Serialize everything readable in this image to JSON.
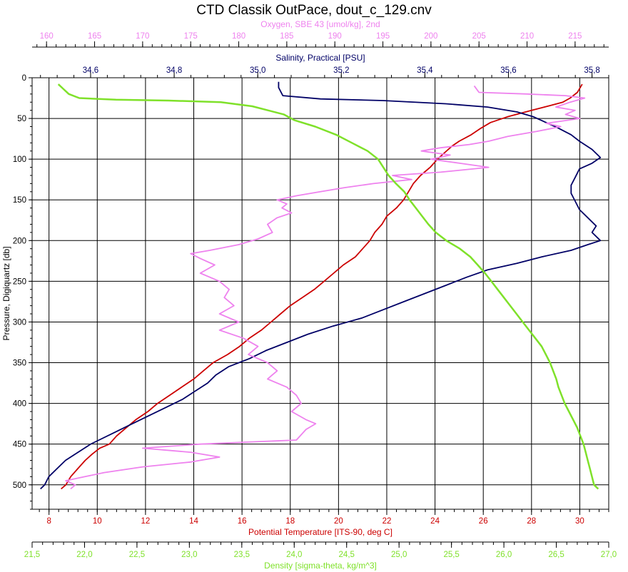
{
  "chart_data": {
    "type": "line",
    "title": "CTD Classik OutPace, dout_c_129.cnv",
    "grid": true,
    "y_axis": {
      "label": "Pressure, Digiquartz [db]",
      "range": [
        530,
        0
      ],
      "inverted": true,
      "ticks": [
        0,
        50,
        100,
        150,
        200,
        250,
        300,
        350,
        400,
        450,
        500
      ],
      "tick_labels": [
        "0",
        "50",
        "100",
        "150",
        "200",
        "250",
        "300",
        "350",
        "400",
        "450",
        "500"
      ],
      "color": "#000000"
    },
    "x_axes": [
      {
        "id": "oxygen",
        "label": "Oxygen, SBE 43 [umol/kg], 2nd",
        "position": "top-outer",
        "range": [
          158.5,
          218.5
        ],
        "ticks": [
          160,
          165,
          170,
          175,
          180,
          185,
          190,
          195,
          200,
          205,
          210,
          215
        ],
        "tick_labels": [
          "160",
          "165",
          "170",
          "175",
          "180",
          "185",
          "190",
          "195",
          "200",
          "205",
          "210",
          "215"
        ],
        "color": "#ee82ee"
      },
      {
        "id": "salinity",
        "label": "Salinity, Practical [PSU]",
        "position": "top-inner",
        "range": [
          34.46,
          35.84
        ],
        "ticks": [
          34.6,
          34.8,
          35.0,
          35.2,
          35.4,
          35.6,
          35.8
        ],
        "tick_labels": [
          "34,6",
          "34,8",
          "35,0",
          "35,2",
          "35,4",
          "35,6",
          "35,8"
        ],
        "color": "#000066"
      },
      {
        "id": "temperature",
        "label": "Potential Temperature [ITS-90, deg C]",
        "position": "bottom-inner",
        "range": [
          7.3,
          31.2
        ],
        "ticks": [
          8,
          10,
          12,
          14,
          16,
          18,
          20,
          22,
          24,
          26,
          28,
          30
        ],
        "tick_labels": [
          "8",
          "10",
          "12",
          "14",
          "16",
          "18",
          "20",
          "22",
          "24",
          "26",
          "28",
          "30"
        ],
        "color": "#cc0000"
      },
      {
        "id": "density",
        "label": "Density [sigma-theta, kg/m^3]",
        "position": "bottom-outer",
        "range": [
          21.5,
          27.0
        ],
        "ticks": [
          21.5,
          22.0,
          22.5,
          23.0,
          23.5,
          24.0,
          24.5,
          25.0,
          25.5,
          26.0,
          26.5,
          27.0
        ],
        "tick_labels": [
          "21,5",
          "22,0",
          "22,5",
          "23,0",
          "23,5",
          "24,0",
          "24,5",
          "25,0",
          "25,5",
          "26,0",
          "26,5",
          "27,0"
        ],
        "color": "#7fe12a"
      }
    ],
    "series": [
      {
        "id": "temperature",
        "axis": "temperature",
        "color": "#cc0000",
        "points": [
          [
            30.1,
            8
          ],
          [
            29.9,
            18
          ],
          [
            29.6,
            25
          ],
          [
            29.3,
            30
          ],
          [
            28.8,
            34
          ],
          [
            28.0,
            40
          ],
          [
            27.0,
            48
          ],
          [
            26.3,
            55
          ],
          [
            25.9,
            62
          ],
          [
            25.5,
            70
          ],
          [
            25.0,
            78
          ],
          [
            24.7,
            84
          ],
          [
            24.4,
            92
          ],
          [
            24.1,
            100
          ],
          [
            23.8,
            110
          ],
          [
            23.4,
            120
          ],
          [
            23.1,
            130
          ],
          [
            22.9,
            140
          ],
          [
            22.7,
            150
          ],
          [
            22.4,
            160
          ],
          [
            22.0,
            170
          ],
          [
            21.8,
            180
          ],
          [
            21.5,
            190
          ],
          [
            21.3,
            200
          ],
          [
            21.0,
            210
          ],
          [
            20.7,
            220
          ],
          [
            20.2,
            230
          ],
          [
            19.8,
            240
          ],
          [
            19.4,
            250
          ],
          [
            19.0,
            260
          ],
          [
            18.5,
            270
          ],
          [
            18.0,
            280
          ],
          [
            17.6,
            290
          ],
          [
            17.2,
            300
          ],
          [
            16.8,
            310
          ],
          [
            16.3,
            320
          ],
          [
            15.9,
            330
          ],
          [
            15.4,
            340
          ],
          [
            14.8,
            350
          ],
          [
            14.4,
            360
          ],
          [
            14.0,
            370
          ],
          [
            13.5,
            380
          ],
          [
            13.0,
            390
          ],
          [
            12.5,
            400
          ],
          [
            12.1,
            410
          ],
          [
            11.6,
            420
          ],
          [
            11.2,
            430
          ],
          [
            10.8,
            440
          ],
          [
            10.5,
            450
          ],
          [
            10.1,
            455
          ],
          [
            9.8,
            462
          ],
          [
            9.5,
            470
          ],
          [
            9.2,
            480
          ],
          [
            8.9,
            490
          ],
          [
            8.7,
            500
          ],
          [
            8.5,
            505
          ]
        ]
      },
      {
        "id": "salinity",
        "axis": "salinity",
        "color": "#000066",
        "points": [
          [
            35.05,
            5
          ],
          [
            35.05,
            12
          ],
          [
            35.06,
            22
          ],
          [
            35.15,
            26
          ],
          [
            35.3,
            28
          ],
          [
            35.45,
            32
          ],
          [
            35.55,
            36
          ],
          [
            35.62,
            42
          ],
          [
            35.66,
            48
          ],
          [
            35.69,
            55
          ],
          [
            35.72,
            62
          ],
          [
            35.75,
            70
          ],
          [
            35.77,
            78
          ],
          [
            35.8,
            88
          ],
          [
            35.82,
            98
          ],
          [
            35.8,
            105
          ],
          [
            35.77,
            112
          ],
          [
            35.76,
            122
          ],
          [
            35.75,
            132
          ],
          [
            35.75,
            142
          ],
          [
            35.76,
            152
          ],
          [
            35.77,
            162
          ],
          [
            35.79,
            172
          ],
          [
            35.81,
            182
          ],
          [
            35.8,
            190
          ],
          [
            35.82,
            200
          ],
          [
            35.79,
            205
          ],
          [
            35.75,
            212
          ],
          [
            35.68,
            220
          ],
          [
            35.62,
            228
          ],
          [
            35.55,
            236
          ],
          [
            35.5,
            245
          ],
          [
            35.45,
            255
          ],
          [
            35.4,
            265
          ],
          [
            35.35,
            275
          ],
          [
            35.3,
            285
          ],
          [
            35.25,
            295
          ],
          [
            35.18,
            305
          ],
          [
            35.12,
            315
          ],
          [
            35.07,
            325
          ],
          [
            35.02,
            335
          ],
          [
            34.98,
            345
          ],
          [
            34.93,
            355
          ],
          [
            34.9,
            365
          ],
          [
            34.88,
            375
          ],
          [
            34.85,
            385
          ],
          [
            34.82,
            395
          ],
          [
            34.78,
            405
          ],
          [
            34.74,
            415
          ],
          [
            34.7,
            425
          ],
          [
            34.66,
            435
          ],
          [
            34.62,
            445
          ],
          [
            34.6,
            450
          ],
          [
            34.57,
            460
          ],
          [
            34.54,
            470
          ],
          [
            34.52,
            480
          ],
          [
            34.5,
            490
          ],
          [
            34.49,
            500
          ],
          [
            34.48,
            505
          ]
        ]
      },
      {
        "id": "oxygen",
        "axis": "oxygen",
        "color": "#ee82ee",
        "points": [
          [
            204.5,
            10
          ],
          [
            205.0,
            18
          ],
          [
            210.0,
            20
          ],
          [
            214.0,
            22
          ],
          [
            216.0,
            25
          ],
          [
            214.5,
            30
          ],
          [
            213.0,
            36
          ],
          [
            215.0,
            40
          ],
          [
            214.0,
            45
          ],
          [
            215.5,
            50
          ],
          [
            212.0,
            56
          ],
          [
            213.5,
            60
          ],
          [
            211.0,
            66
          ],
          [
            208.0,
            72
          ],
          [
            206.0,
            78
          ],
          [
            204.0,
            82
          ],
          [
            201.0,
            86
          ],
          [
            199.0,
            90
          ],
          [
            202.0,
            95
          ],
          [
            200.0,
            100
          ],
          [
            203.0,
            105
          ],
          [
            206.0,
            110
          ],
          [
            201.0,
            116
          ],
          [
            196.0,
            120
          ],
          [
            198.0,
            125
          ],
          [
            194.0,
            130
          ],
          [
            191.0,
            135
          ],
          [
            188.5,
            140
          ],
          [
            186.0,
            145
          ],
          [
            184.0,
            150
          ],
          [
            185.0,
            155
          ],
          [
            184.5,
            160
          ],
          [
            185.5,
            166
          ],
          [
            184.0,
            172
          ],
          [
            183.0,
            180
          ],
          [
            183.5,
            190
          ],
          [
            182.0,
            198
          ],
          [
            180.0,
            205
          ],
          [
            177.0,
            212
          ],
          [
            175.0,
            216
          ],
          [
            176.0,
            222
          ],
          [
            177.5,
            230
          ],
          [
            176.0,
            240
          ],
          [
            178.0,
            250
          ],
          [
            179.0,
            260
          ],
          [
            178.5,
            270
          ],
          [
            179.5,
            280
          ],
          [
            178.0,
            290
          ],
          [
            180.0,
            300
          ],
          [
            178.0,
            310
          ],
          [
            180.5,
            320
          ],
          [
            182.0,
            330
          ],
          [
            181.0,
            340
          ],
          [
            183.0,
            350
          ],
          [
            184.0,
            360
          ],
          [
            183.0,
            370
          ],
          [
            185.0,
            380
          ],
          [
            186.0,
            390
          ],
          [
            186.5,
            400
          ],
          [
            185.5,
            410
          ],
          [
            187.0,
            420
          ],
          [
            188.0,
            425
          ],
          [
            187.0,
            432
          ],
          [
            186.0,
            445
          ],
          [
            176.0,
            450
          ],
          [
            170.0,
            455
          ],
          [
            175.0,
            460
          ],
          [
            178.0,
            466
          ],
          [
            175.0,
            472
          ],
          [
            170.0,
            478
          ],
          [
            166.0,
            485
          ],
          [
            164.0,
            490
          ],
          [
            162.0,
            495
          ],
          [
            163.0,
            500
          ],
          [
            162.5,
            505
          ]
        ]
      },
      {
        "id": "density",
        "axis": "density",
        "color": "#7fe12a",
        "points": [
          [
            21.75,
            8
          ],
          [
            21.8,
            14
          ],
          [
            21.85,
            20
          ],
          [
            21.95,
            25
          ],
          [
            22.3,
            27
          ],
          [
            22.8,
            28
          ],
          [
            23.3,
            30
          ],
          [
            23.6,
            35
          ],
          [
            23.9,
            45
          ],
          [
            24.0,
            52
          ],
          [
            24.2,
            60
          ],
          [
            24.4,
            70
          ],
          [
            24.55,
            80
          ],
          [
            24.7,
            90
          ],
          [
            24.8,
            100
          ],
          [
            24.85,
            110
          ],
          [
            24.9,
            120
          ],
          [
            24.97,
            130
          ],
          [
            25.05,
            140
          ],
          [
            25.1,
            150
          ],
          [
            25.16,
            160
          ],
          [
            25.22,
            170
          ],
          [
            25.28,
            180
          ],
          [
            25.35,
            190
          ],
          [
            25.45,
            200
          ],
          [
            25.58,
            210
          ],
          [
            25.68,
            220
          ],
          [
            25.75,
            230
          ],
          [
            25.82,
            240
          ],
          [
            25.88,
            250
          ],
          [
            25.94,
            260
          ],
          [
            26.0,
            270
          ],
          [
            26.06,
            280
          ],
          [
            26.12,
            290
          ],
          [
            26.18,
            300
          ],
          [
            26.24,
            310
          ],
          [
            26.3,
            320
          ],
          [
            26.36,
            330
          ],
          [
            26.4,
            340
          ],
          [
            26.44,
            350
          ],
          [
            26.47,
            360
          ],
          [
            26.5,
            370
          ],
          [
            26.52,
            380
          ],
          [
            26.55,
            390
          ],
          [
            26.58,
            400
          ],
          [
            26.62,
            410
          ],
          [
            26.66,
            420
          ],
          [
            26.7,
            430
          ],
          [
            26.73,
            440
          ],
          [
            26.76,
            450
          ],
          [
            26.78,
            460
          ],
          [
            26.8,
            470
          ],
          [
            26.82,
            480
          ],
          [
            26.84,
            490
          ],
          [
            26.86,
            500
          ],
          [
            26.9,
            505
          ]
        ]
      }
    ]
  }
}
